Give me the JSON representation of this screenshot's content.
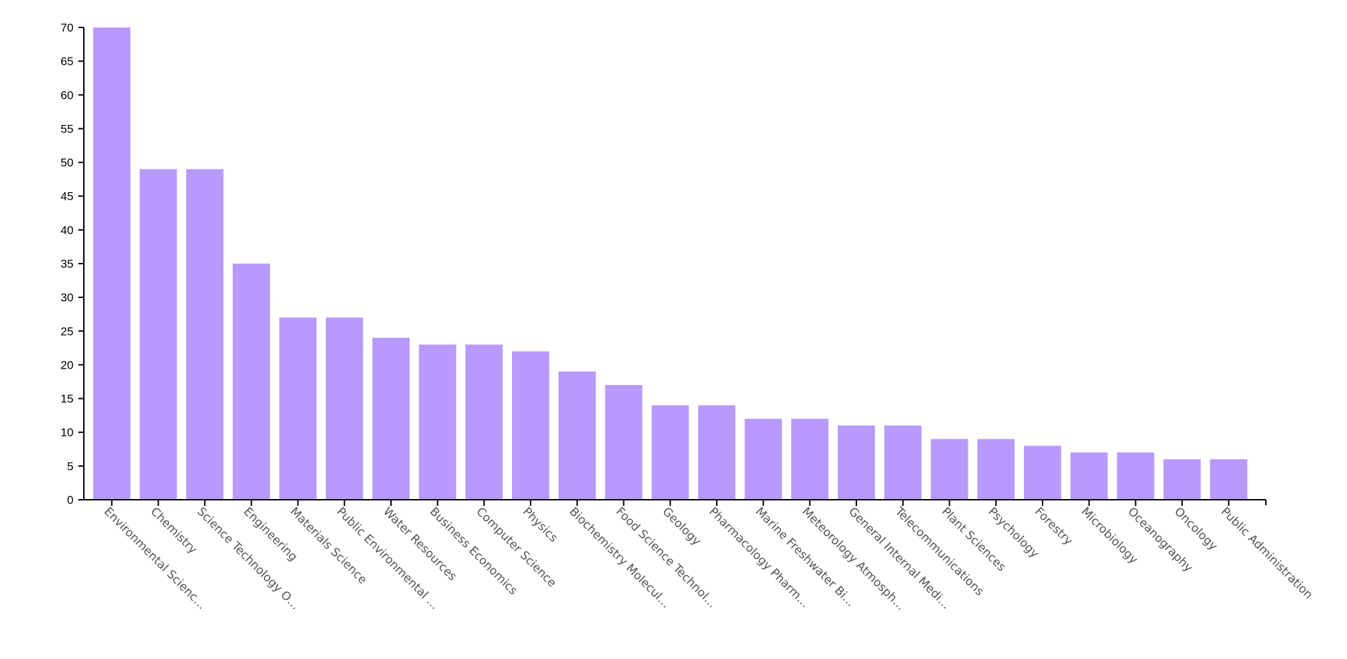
{
  "chart_data": {
    "type": "bar",
    "title": "",
    "xlabel": "",
    "ylabel": "",
    "ylim": [
      0,
      70
    ],
    "yticks": [
      0,
      5,
      10,
      15,
      20,
      25,
      30,
      35,
      40,
      45,
      50,
      55,
      60,
      65,
      70
    ],
    "grid": false,
    "legend": "none",
    "bar_color": "#b899fc",
    "categories": [
      "Environmental Scienc…",
      "Chemistry",
      "Science Technology O…",
      "Engineering",
      "Materials Science",
      "Public Environmental …",
      "Water Resources",
      "Business Economics",
      "Computer Science",
      "Physics",
      "Biochemistry Molecul…",
      "Food Science Technol…",
      "Geology",
      "Pharmacology Pharm…",
      "Marine Freshwater Bi…",
      "Meteorology Atmosph…",
      "General Internal Medi…",
      "Telecommunications",
      "Plant Sciences",
      "Psychology",
      "Forestry",
      "Microbiology",
      "Oceanography",
      "Oncology",
      "Public Administration"
    ],
    "values": [
      70,
      49,
      49,
      35,
      27,
      27,
      24,
      23,
      23,
      22,
      19,
      17,
      14,
      14,
      12,
      12,
      11,
      11,
      9,
      9,
      8,
      7,
      7,
      6,
      6
    ]
  }
}
